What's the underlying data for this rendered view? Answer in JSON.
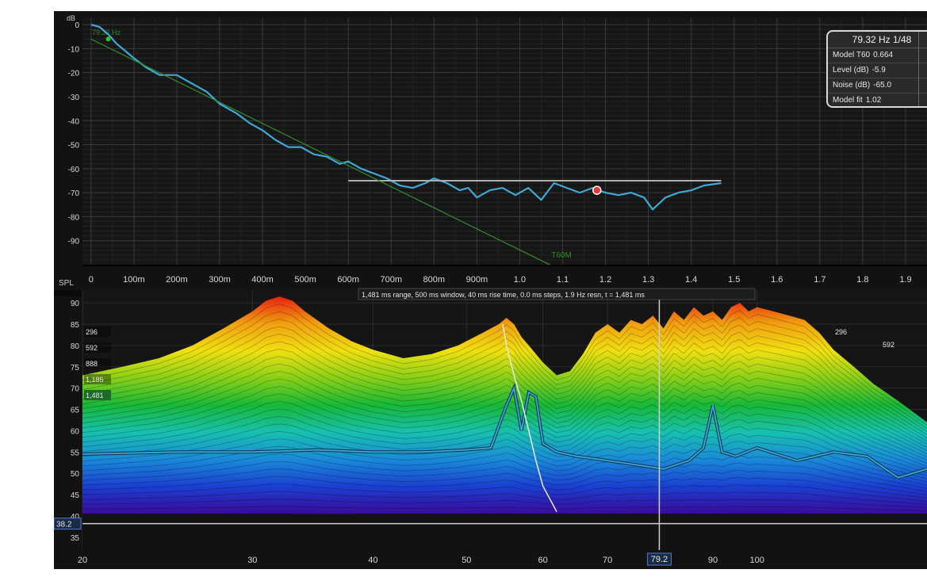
{
  "chart_data": [
    {
      "type": "line",
      "panel": "decay",
      "ylabel": "dB",
      "ylim": [
        -100,
        3
      ],
      "xlim": [
        -0.02,
        1.95
      ],
      "yticks": [
        0,
        -10,
        -20,
        -30,
        -40,
        -50,
        -60,
        -70,
        -80,
        -90
      ],
      "yticks_labels": [
        "0",
        "-10",
        "-20",
        "-30",
        "-40",
        "-50",
        "-60",
        "-70",
        "-80",
        "-90"
      ],
      "xticks": [
        0,
        0.1,
        0.2,
        0.3,
        0.4,
        0.5,
        0.6,
        0.7,
        0.8,
        0.9,
        1.0,
        1.1,
        1.2,
        1.3,
        1.4,
        1.5,
        1.6,
        1.7,
        1.8,
        1.9
      ],
      "xticks_labels": [
        "0",
        "100m",
        "200m",
        "300m",
        "400m",
        "500m",
        "600m",
        "700m",
        "800m",
        "900m",
        "1.0",
        "1.1",
        "1.2",
        "1.3",
        "1.4",
        "1.5",
        "1.6",
        "1.7",
        "1.8",
        "1.9"
      ],
      "grid": true,
      "corner_label": "79.32 Hz",
      "series": [
        {
          "role": "measured",
          "color": "#3fa9d6",
          "x": [
            0,
            0.02,
            0.04,
            0.06,
            0.08,
            0.1,
            0.13,
            0.16,
            0.2,
            0.23,
            0.27,
            0.3,
            0.34,
            0.37,
            0.4,
            0.43,
            0.46,
            0.49,
            0.52,
            0.55,
            0.58,
            0.6,
            0.63,
            0.66,
            0.69,
            0.72,
            0.75,
            0.78,
            0.8,
            0.83,
            0.86,
            0.88,
            0.9,
            0.93,
            0.96,
            0.99,
            1.02,
            1.05,
            1.08,
            1.11,
            1.14,
            1.17,
            1.2,
            1.23,
            1.26,
            1.29,
            1.31,
            1.34,
            1.37,
            1.4,
            1.43,
            1.47
          ],
          "y": [
            0,
            -1,
            -4,
            -8,
            -11,
            -14,
            -18,
            -21,
            -21,
            -24,
            -28,
            -33,
            -37,
            -41,
            -44,
            -48,
            -51,
            -51,
            -54,
            -55,
            -58,
            -57,
            -60,
            -62,
            -64,
            -67,
            -68,
            -66,
            -64,
            -66,
            -69,
            -68,
            -72,
            -69,
            -68,
            -71,
            -68,
            -73,
            -66,
            -68,
            -70,
            -68,
            -70,
            -71,
            -70,
            -72,
            -77,
            -72,
            -70,
            -69,
            -67,
            -66
          ]
        },
        {
          "role": "noise-floor",
          "color": "#b0b0b0",
          "x": [
            0.6,
            1.47
          ],
          "y": [
            -65,
            -65
          ]
        },
        {
          "name": "T60M",
          "color": "#2e8b2e",
          "x": [
            0,
            1.07
          ],
          "y": [
            -6,
            -100
          ]
        }
      ],
      "annotations": [
        {
          "type": "marker",
          "x": 1.18,
          "y": -69,
          "color": "#e8343c"
        },
        {
          "type": "marker",
          "x": 0.04,
          "y": -6,
          "color": "#30c030"
        },
        {
          "type": "label",
          "text": "T60M",
          "x": 1.07,
          "y": -97
        }
      ],
      "info_table": {
        "title": "79.32 Hz 1/48",
        "rows": [
          {
            "label": "Model T60",
            "value": "0.664"
          },
          {
            "label": "Level (dB)",
            "value": "-5.9"
          },
          {
            "label": "Noise (dB)",
            "value": "-65.0"
          },
          {
            "label": "Model fit",
            "value": "1.02"
          }
        ]
      }
    },
    {
      "type": "area",
      "panel": "waterfall",
      "ylabel": "SPL",
      "ylim": [
        32,
        93
      ],
      "xlim": [
        20,
        150
      ],
      "xscale": "log",
      "yticks": [
        90,
        85,
        80,
        75,
        70,
        65,
        60,
        55,
        50,
        45,
        40,
        35
      ],
      "yticks_labels": [
        "90",
        "85",
        "80",
        "75",
        "70",
        "65",
        "60",
        "55",
        "50",
        "45",
        "40",
        "35"
      ],
      "xticks": [
        20,
        30,
        40,
        50,
        60,
        70,
        79.2,
        90,
        100
      ],
      "xticks_labels": [
        "20",
        "30",
        "40",
        "50",
        "60",
        "70",
        "79.2",
        "90",
        "100"
      ],
      "caption": "1,481 ms range, 500 ms window, 40 ms rise time, 0.0 ms steps, 1.9 Hz resn, t = 1,481 ms",
      "cursor": {
        "x_label": "79.2",
        "y_label": "38.2",
        "x": 79.2,
        "y": 38.2
      },
      "time_labels_left": [
        "296",
        "592",
        "888",
        "1,185",
        "1,481"
      ],
      "time_labels_right": [
        "296",
        "592"
      ],
      "colormap": [
        "#3a0a9a",
        "#1a3fd0",
        "#1a8ad8",
        "#18c0b0",
        "#18b838",
        "#8ad018",
        "#f0e010",
        "#f0a010",
        "#e82010"
      ],
      "series": [
        {
          "role": "surface-front",
          "x": [
            20,
            22,
            24,
            26,
            28,
            30,
            31,
            32,
            33,
            34,
            36,
            38,
            40,
            43,
            46,
            49,
            52,
            54,
            55,
            56,
            57,
            58,
            60,
            62,
            64,
            66,
            68,
            70,
            72,
            74,
            76,
            78,
            80,
            82,
            84,
            86,
            88,
            90,
            92,
            94,
            96,
            98,
            100,
            104,
            108,
            112,
            116,
            120,
            126,
            132,
            140,
            150
          ],
          "y": [
            73,
            75,
            77,
            80,
            84,
            88,
            90.5,
            91.5,
            90.5,
            88,
            84,
            81,
            79,
            77,
            78,
            80,
            83,
            85,
            86.5,
            85,
            82,
            80,
            76,
            73,
            74,
            78,
            83,
            85,
            83,
            86,
            85,
            87,
            84,
            88,
            86,
            89,
            87,
            88,
            86,
            89,
            90,
            88,
            89,
            88,
            87,
            86,
            83,
            79,
            75,
            71,
            67,
            62
          ]
        },
        {
          "role": "overlay-curve",
          "color": "#3aa7d6",
          "x": [
            20,
            25,
            30,
            35,
            40,
            45,
            50,
            53,
            55,
            56,
            57,
            58,
            59,
            60,
            62,
            65,
            70,
            75,
            80,
            85,
            88,
            90,
            92,
            95,
            100,
            110,
            120,
            130,
            140,
            150
          ],
          "y": [
            54.5,
            55,
            55,
            55.5,
            55,
            55,
            55.5,
            56,
            66,
            70,
            60,
            69,
            68,
            57,
            55,
            54,
            53,
            52,
            51,
            53,
            56,
            66,
            55,
            54,
            56,
            53,
            55,
            54,
            49,
            51
          ]
        },
        {
          "role": "decay-trace",
          "color": "#e8e8e8",
          "x": [
            54.5,
            55,
            56,
            57,
            58,
            59,
            60,
            62
          ],
          "y": [
            85,
            80,
            73,
            67,
            60,
            53,
            47,
            41
          ]
        }
      ]
    }
  ]
}
